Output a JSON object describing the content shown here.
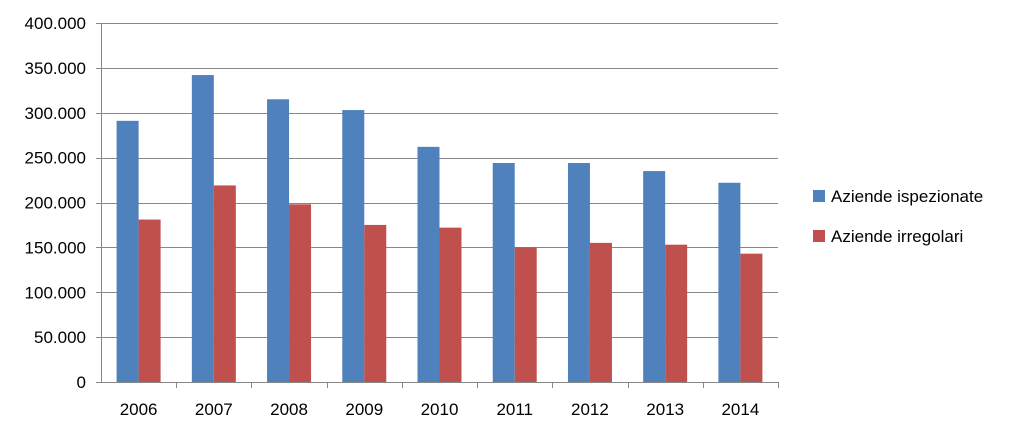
{
  "chart_data": {
    "type": "bar",
    "title": "",
    "xlabel": "",
    "ylabel": "",
    "categories": [
      "2006",
      "2007",
      "2008",
      "2009",
      "2010",
      "2011",
      "2012",
      "2013",
      "2014"
    ],
    "series": [
      {
        "name": "Aziende ispezionate",
        "color": "#4F81BD",
        "values": [
          291000,
          342000,
          315000,
          303000,
          262000,
          244000,
          244000,
          235000,
          222000
        ]
      },
      {
        "name": "Aziende irregolari",
        "color": "#C0504D",
        "values": [
          181000,
          219000,
          198000,
          175000,
          172000,
          150000,
          155000,
          153000,
          143000
        ]
      }
    ],
    "ylim": [
      0,
      400000
    ],
    "yticks": [
      0,
      50000,
      100000,
      150000,
      200000,
      250000,
      300000,
      350000,
      400000
    ],
    "ytick_labels": [
      "0",
      "50.000",
      "100.000",
      "150.000",
      "200.000",
      "250.000",
      "300.000",
      "350.000",
      "400.000"
    ],
    "grid": true,
    "legend_position": "right"
  }
}
